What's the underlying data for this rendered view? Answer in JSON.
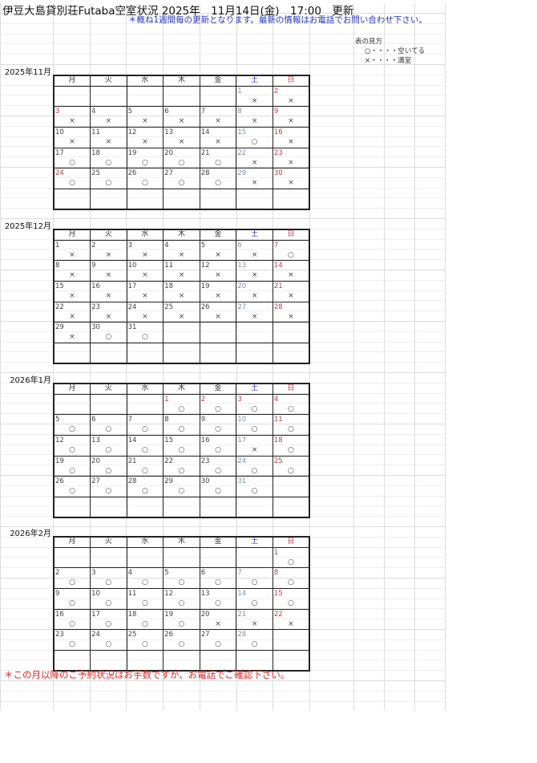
{
  "header": {
    "title": "伊豆大島貸別荘Futaba空室状況 2025年　11月14日(金)　17:00　更新",
    "note": "＊概ね1週間毎の更新となります。最新の情報はお電話でお問い合わせ下さい。"
  },
  "legend": {
    "title": "表の見方",
    "available": "○・・・・空いてる",
    "full": "×・・・・満室"
  },
  "weekdays": [
    "月",
    "火",
    "水",
    "木",
    "金",
    "土",
    "日"
  ],
  "colors": {
    "saturday": "#3333aa",
    "sunday_holiday": "#cc3344",
    "footer": "#dd2222",
    "note": "#2233bb"
  },
  "months": [
    {
      "label": "2025年11月",
      "start_offset": 5,
      "holidays": [
        "3",
        "24"
      ],
      "days": [
        "×",
        "×",
        "×",
        "×",
        "×",
        "×",
        "×",
        "×",
        "×",
        "×",
        "×",
        "×",
        "×",
        "×",
        "○",
        "×",
        "○",
        "○",
        "○",
        "○",
        "○",
        "×",
        "×",
        "○",
        "○",
        "○",
        "○",
        "○",
        "×",
        "×"
      ]
    },
    {
      "label": "2025年12月",
      "start_offset": 0,
      "holidays": [],
      "days": [
        "×",
        "×",
        "×",
        "×",
        "×",
        "×",
        "○",
        "×",
        "×",
        "×",
        "×",
        "×",
        "×",
        "×",
        "×",
        "×",
        "×",
        "×",
        "×",
        "×",
        "×",
        "×",
        "×",
        "×",
        "×",
        "×",
        "×",
        "×",
        "×",
        "○",
        "○"
      ]
    },
    {
      "label": "2026年1月",
      "start_offset": 3,
      "holidays": [
        "1",
        "2",
        "3"
      ],
      "days": [
        "○",
        "○",
        "○",
        "○",
        "○",
        "○",
        "○",
        "○",
        "○",
        "○",
        "○",
        "○",
        "○",
        "○",
        "○",
        "○",
        "×",
        "○",
        "○",
        "○",
        "○",
        "○",
        "○",
        "○",
        "○",
        "○",
        "○",
        "○",
        "○",
        "○",
        "○"
      ]
    },
    {
      "label": "2026年2月",
      "start_offset": 6,
      "holidays": [],
      "days": [
        "○",
        "○",
        "○",
        "○",
        "○",
        "○",
        "○",
        "○",
        "○",
        "○",
        "○",
        "○",
        "○",
        "○",
        "○",
        "○",
        "○",
        "○",
        "○",
        "×",
        "×",
        "×",
        "○",
        "○",
        "○",
        "○",
        "○",
        "○"
      ]
    }
  ],
  "footer": "＊この月以降のご予約状況はお手数ですが、お電話でご確認下さい。"
}
